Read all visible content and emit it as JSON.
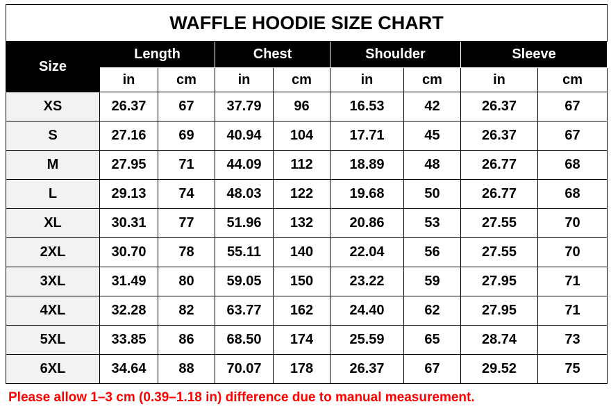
{
  "title": "WAFFLE HOODIE SIZE CHART",
  "size_header": "Size",
  "groups": [
    "Length",
    "Chest",
    "Shoulder",
    "Sleeve"
  ],
  "units": [
    "in",
    "cm",
    "in",
    "cm",
    "in",
    "cm",
    "in",
    "cm"
  ],
  "rows": [
    {
      "size": "XS",
      "values": [
        "26.37",
        "67",
        "37.79",
        "96",
        "16.53",
        "42",
        "26.37",
        "67"
      ]
    },
    {
      "size": "S",
      "values": [
        "27.16",
        "69",
        "40.94",
        "104",
        "17.71",
        "45",
        "26.37",
        "67"
      ]
    },
    {
      "size": "M",
      "values": [
        "27.95",
        "71",
        "44.09",
        "112",
        "18.89",
        "48",
        "26.77",
        "68"
      ]
    },
    {
      "size": "L",
      "values": [
        "29.13",
        "74",
        "48.03",
        "122",
        "19.68",
        "50",
        "26.77",
        "68"
      ]
    },
    {
      "size": "XL",
      "values": [
        "30.31",
        "77",
        "51.96",
        "132",
        "20.86",
        "53",
        "27.55",
        "70"
      ]
    },
    {
      "size": "2XL",
      "values": [
        "30.70",
        "78",
        "55.11",
        "140",
        "22.04",
        "56",
        "27.55",
        "70"
      ]
    },
    {
      "size": "3XL",
      "values": [
        "31.49",
        "80",
        "59.05",
        "150",
        "23.22",
        "59",
        "27.95",
        "71"
      ]
    },
    {
      "size": "4XL",
      "values": [
        "32.28",
        "82",
        "63.77",
        "162",
        "24.40",
        "62",
        "27.95",
        "71"
      ]
    },
    {
      "size": "5XL",
      "values": [
        "33.85",
        "86",
        "68.50",
        "174",
        "25.59",
        "65",
        "28.74",
        "73"
      ]
    },
    {
      "size": "6XL",
      "values": [
        "34.64",
        "88",
        "70.07",
        "178",
        "26.37",
        "67",
        "29.52",
        "75"
      ]
    }
  ],
  "note": "Please allow 1–3 cm (0.39–1.18 in) difference due to manual measurement.",
  "colors": {
    "header_bg": "#000000",
    "size_column_bg": "#f2f2f2",
    "note": "#ff0000"
  }
}
